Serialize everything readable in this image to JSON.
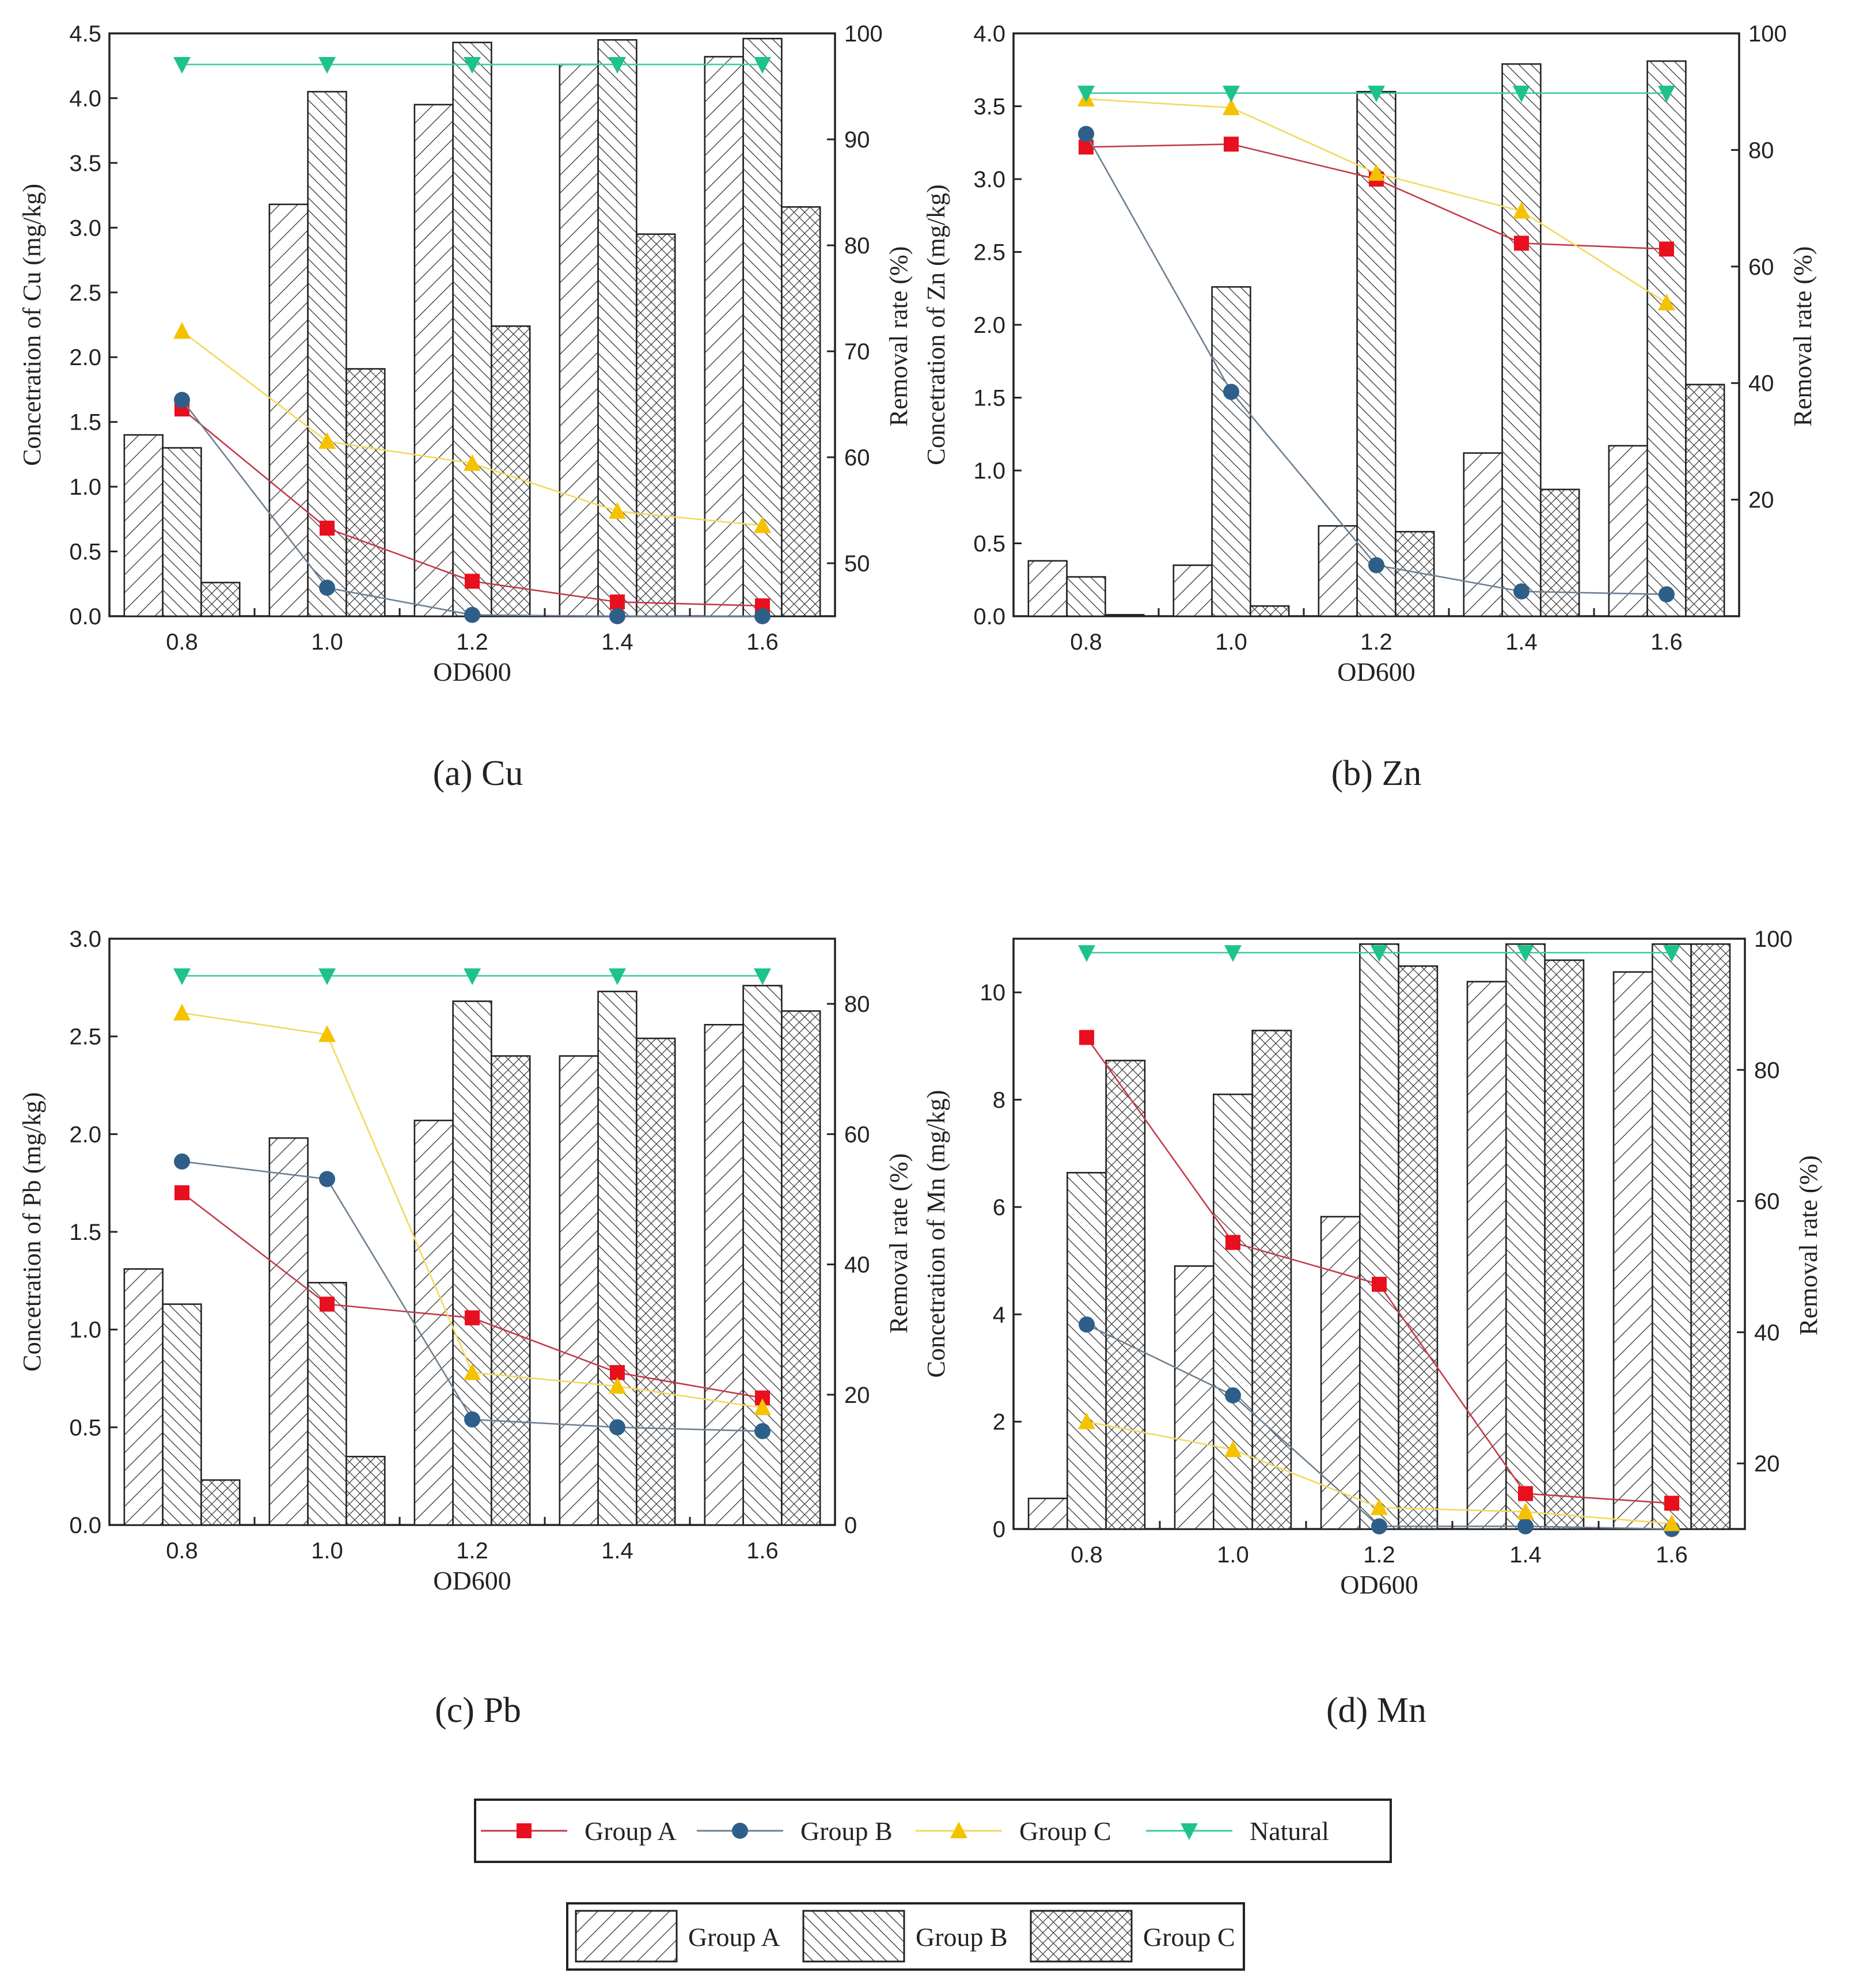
{
  "colors": {
    "group_a": "#e8101e",
    "group_b": "#2e5f8a",
    "group_c": "#f5c200",
    "natural": "#1ec28b",
    "line_a": "#c23a4a",
    "line_b": "#6d7f91",
    "line_c": "#f2d95c",
    "line_natural": "#3ecf9a"
  },
  "line_legend": {
    "items": [
      {
        "label": "Group A",
        "marker": "square",
        "series": "group_a"
      },
      {
        "label": "Group B",
        "marker": "circle",
        "series": "group_b"
      },
      {
        "label": "Group C",
        "marker": "triangle-up",
        "series": "group_c"
      },
      {
        "label": "Natural",
        "marker": "triangle-down",
        "series": "natural"
      }
    ]
  },
  "bar_legend": {
    "items": [
      {
        "label": "Group A",
        "pattern": "hatch-forward"
      },
      {
        "label": "Group B",
        "pattern": "hatch-back"
      },
      {
        "label": "Group C",
        "pattern": "crosshatch"
      }
    ]
  },
  "chart_data": [
    {
      "id": "a",
      "type": "bar",
      "caption": "(a)  Cu",
      "xlabel": "OD600",
      "ylabel": "Concetration of Cu (mg/kg)",
      "y2label": "Removal rate (%)",
      "categories": [
        "0.8",
        "1.0",
        "1.2",
        "1.4",
        "1.6"
      ],
      "ylim": [
        0,
        4.5
      ],
      "yticks": [
        "0.0",
        "0.5",
        "1.0",
        "1.5",
        "2.0",
        "2.5",
        "3.0",
        "3.5",
        "4.0",
        "4.5"
      ],
      "y2lim": [
        45,
        100
      ],
      "y2ticks": [
        "50",
        "60",
        "70",
        "80",
        "90",
        "100"
      ],
      "bars": [
        {
          "name": "Group A",
          "pattern": "hatch-forward",
          "values": [
            1.4,
            3.18,
            3.95,
            4.26,
            4.32
          ]
        },
        {
          "name": "Group B",
          "pattern": "hatch-back",
          "values": [
            1.3,
            4.05,
            4.43,
            4.45,
            4.46
          ]
        },
        {
          "name": "Group C",
          "pattern": "crosshatch",
          "values": [
            0.26,
            1.91,
            2.24,
            2.95,
            3.16
          ]
        }
      ],
      "lines": [
        {
          "name": "Group A",
          "marker": "square",
          "values": [
            1.6,
            0.68,
            0.27,
            0.11,
            0.08
          ]
        },
        {
          "name": "Group B",
          "marker": "circle",
          "values": [
            1.67,
            0.22,
            0.01,
            0.0,
            0.0
          ]
        },
        {
          "name": "Group C",
          "marker": "triangle-up",
          "values": [
            2.2,
            1.35,
            1.18,
            0.81,
            0.7
          ]
        },
        {
          "name": "Natural",
          "marker": "triangle-down",
          "values": [
            4.26,
            4.26,
            4.26,
            4.26,
            4.26
          ]
        }
      ]
    },
    {
      "id": "b",
      "type": "bar",
      "caption": "(b)  Zn",
      "xlabel": "OD600",
      "ylabel": "Concetration of Zn (mg/kg)",
      "y2label": "Removal rate (%)",
      "categories": [
        "0.8",
        "1.0",
        "1.2",
        "1.4",
        "1.6"
      ],
      "ylim": [
        0,
        4.0
      ],
      "yticks": [
        "0.0",
        "0.5",
        "1.0",
        "1.5",
        "2.0",
        "2.5",
        "3.0",
        "3.5",
        "4.0"
      ],
      "y2lim": [
        0,
        100
      ],
      "y2ticks": [
        "20",
        "40",
        "60",
        "80",
        "100"
      ],
      "bars": [
        {
          "name": "Group A",
          "pattern": "hatch-forward",
          "values": [
            0.38,
            0.35,
            0.62,
            1.12,
            1.17
          ]
        },
        {
          "name": "Group B",
          "pattern": "hatch-back",
          "values": [
            0.27,
            2.26,
            3.6,
            3.79,
            3.81
          ]
        },
        {
          "name": "Group C",
          "pattern": "crosshatch",
          "values": [
            0.01,
            0.07,
            0.58,
            0.87,
            1.59
          ]
        }
      ],
      "lines": [
        {
          "name": "Group A",
          "marker": "square",
          "values": [
            3.22,
            3.24,
            3.0,
            2.56,
            2.52
          ]
        },
        {
          "name": "Group B",
          "marker": "circle",
          "values": [
            3.31,
            1.54,
            0.35,
            0.17,
            0.15
          ]
        },
        {
          "name": "Group C",
          "marker": "triangle-up",
          "values": [
            3.55,
            3.49,
            3.04,
            2.78,
            2.15
          ]
        },
        {
          "name": "Natural",
          "marker": "triangle-down",
          "values": [
            3.59,
            3.59,
            3.59,
            3.59,
            3.59
          ]
        }
      ]
    },
    {
      "id": "c",
      "type": "bar",
      "caption": "(c)  Pb",
      "xlabel": "OD600",
      "ylabel": "Concetration of Pb (mg/kg)",
      "y2label": "Removal rate (%)",
      "categories": [
        "0.8",
        "1.0",
        "1.2",
        "1.4",
        "1.6"
      ],
      "ylim": [
        0,
        3.0
      ],
      "yticks": [
        "0.0",
        "0.5",
        "1.0",
        "1.5",
        "2.0",
        "2.5",
        "3.0"
      ],
      "y2lim": [
        0,
        90
      ],
      "y2ticks": [
        "0",
        "20",
        "40",
        "60",
        "80"
      ],
      "bars": [
        {
          "name": "Group A",
          "pattern": "hatch-forward",
          "values": [
            1.31,
            1.98,
            2.07,
            2.4,
            2.56
          ]
        },
        {
          "name": "Group B",
          "pattern": "hatch-back",
          "values": [
            1.13,
            1.24,
            2.68,
            2.73,
            2.76
          ]
        },
        {
          "name": "Group C",
          "pattern": "crosshatch",
          "values": [
            0.23,
            0.35,
            2.4,
            2.49,
            2.63
          ]
        }
      ],
      "lines": [
        {
          "name": "Group A",
          "marker": "square",
          "values": [
            1.7,
            1.13,
            1.06,
            0.78,
            0.65
          ]
        },
        {
          "name": "Group B",
          "marker": "circle",
          "values": [
            1.86,
            1.77,
            0.54,
            0.5,
            0.48
          ]
        },
        {
          "name": "Group C",
          "marker": "triangle-up",
          "values": [
            2.62,
            2.51,
            0.78,
            0.71,
            0.6
          ]
        },
        {
          "name": "Natural",
          "marker": "triangle-down",
          "values": [
            2.81,
            2.81,
            2.81,
            2.81,
            2.81
          ]
        }
      ]
    },
    {
      "id": "d",
      "type": "bar",
      "caption": "(d)  Mn",
      "xlabel": "OD600",
      "ylabel": "Concetration of Mn (mg/kg)",
      "y2label": "Removal rate (%)",
      "categories": [
        "0.8",
        "1.0",
        "1.2",
        "1.4",
        "1.6"
      ],
      "ylim": [
        0,
        11
      ],
      "yticks": [
        "0",
        "2",
        "4",
        "6",
        "8",
        "10"
      ],
      "y2lim": [
        10,
        100
      ],
      "y2ticks": [
        "20",
        "40",
        "60",
        "80",
        "100"
      ],
      "bars": [
        {
          "name": "Group A",
          "pattern": "hatch-forward",
          "values": [
            0.57,
            4.9,
            5.82,
            10.2,
            10.38
          ]
        },
        {
          "name": "Group B",
          "pattern": "hatch-back",
          "values": [
            6.64,
            8.1,
            10.9,
            10.9,
            10.9
          ]
        },
        {
          "name": "Group C",
          "pattern": "crosshatch",
          "values": [
            8.73,
            9.29,
            10.49,
            10.6,
            10.9
          ]
        }
      ],
      "lines": [
        {
          "name": "Group A",
          "marker": "square",
          "values": [
            9.16,
            5.34,
            4.56,
            0.66,
            0.48
          ]
        },
        {
          "name": "Group B",
          "marker": "circle",
          "values": [
            3.81,
            2.49,
            0.05,
            0.05,
            0.0
          ]
        },
        {
          "name": "Group C",
          "marker": "triangle-up",
          "values": [
            2.0,
            1.48,
            0.4,
            0.32,
            0.1
          ]
        },
        {
          "name": "Natural",
          "marker": "triangle-down",
          "values": [
            10.74,
            10.74,
            10.74,
            10.74,
            10.74
          ]
        }
      ]
    }
  ]
}
